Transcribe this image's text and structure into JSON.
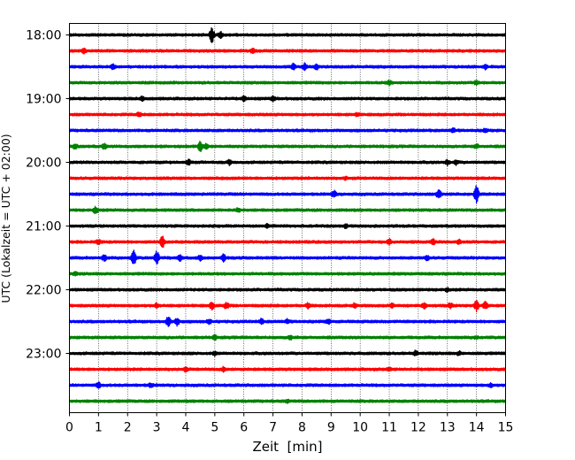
{
  "chart_data": {
    "type": "line",
    "xlabel": "Zeit  [min]",
    "ylabel": "UTC (Lokalzeit = UTC + 02:00)",
    "xlim": [
      0,
      15
    ],
    "x_ticks": [
      "0",
      "1",
      "2",
      "3",
      "4",
      "5",
      "6",
      "7",
      "8",
      "9",
      "10",
      "11",
      "12",
      "13",
      "14",
      "15"
    ],
    "y_ticks": [
      "18:00",
      "19:00",
      "20:00",
      "21:00",
      "22:00",
      "23:00"
    ],
    "grid": "vertical dotted",
    "trace_interval_minutes": 15,
    "start_time": "18:00",
    "colors": [
      "#000000",
      "#ff0000",
      "#0000ff",
      "#008000"
    ],
    "series": [
      {
        "start": "18:00",
        "color_index": 0,
        "events": [
          [
            4.9,
            1.0
          ],
          [
            5.2,
            0.4
          ]
        ]
      },
      {
        "start": "18:15",
        "color_index": 1,
        "events": [
          [
            0.5,
            0.3
          ],
          [
            6.3,
            0.3
          ]
        ]
      },
      {
        "start": "18:30",
        "color_index": 2,
        "events": [
          [
            1.5,
            0.35
          ],
          [
            7.7,
            0.4
          ],
          [
            8.1,
            0.45
          ],
          [
            8.5,
            0.4
          ],
          [
            14.3,
            0.3
          ]
        ]
      },
      {
        "start": "18:45",
        "color_index": 3,
        "events": [
          [
            11.0,
            0.3
          ],
          [
            14.0,
            0.3
          ]
        ]
      },
      {
        "start": "19:00",
        "color_index": 0,
        "events": [
          [
            2.5,
            0.3
          ],
          [
            6.0,
            0.3
          ],
          [
            7.0,
            0.3
          ]
        ]
      },
      {
        "start": "19:15",
        "color_index": 1,
        "events": [
          [
            2.4,
            0.3
          ],
          [
            9.9,
            0.25
          ]
        ]
      },
      {
        "start": "19:30",
        "color_index": 2,
        "events": [
          [
            13.2,
            0.3
          ],
          [
            14.3,
            0.25
          ]
        ]
      },
      {
        "start": "19:45",
        "color_index": 3,
        "events": [
          [
            0.2,
            0.4
          ],
          [
            1.2,
            0.35
          ],
          [
            4.5,
            0.7
          ],
          [
            4.7,
            0.4
          ],
          [
            14.0,
            0.3
          ]
        ]
      },
      {
        "start": "20:00",
        "color_index": 0,
        "events": [
          [
            4.1,
            0.35
          ],
          [
            5.5,
            0.3
          ],
          [
            13.0,
            0.35
          ],
          [
            13.3,
            0.3
          ]
        ]
      },
      {
        "start": "20:15",
        "color_index": 1,
        "events": [
          [
            9.5,
            0.2
          ]
        ]
      },
      {
        "start": "20:30",
        "color_index": 2,
        "events": [
          [
            9.1,
            0.45
          ],
          [
            12.7,
            0.6
          ],
          [
            14.0,
            1.1
          ]
        ]
      },
      {
        "start": "20:45",
        "color_index": 3,
        "events": [
          [
            0.9,
            0.5
          ],
          [
            5.8,
            0.3
          ]
        ]
      },
      {
        "start": "21:00",
        "color_index": 0,
        "events": [
          [
            6.8,
            0.25
          ],
          [
            9.5,
            0.25
          ]
        ]
      },
      {
        "start": "21:15",
        "color_index": 1,
        "events": [
          [
            1.0,
            0.3
          ],
          [
            3.2,
            0.8
          ],
          [
            11.0,
            0.35
          ],
          [
            12.5,
            0.4
          ],
          [
            13.4,
            0.3
          ]
        ]
      },
      {
        "start": "21:30",
        "color_index": 2,
        "events": [
          [
            1.2,
            0.4
          ],
          [
            2.2,
            1.1
          ],
          [
            3.0,
            1.0
          ],
          [
            3.8,
            0.4
          ],
          [
            4.5,
            0.35
          ],
          [
            5.3,
            0.5
          ],
          [
            12.3,
            0.35
          ]
        ]
      },
      {
        "start": "21:45",
        "color_index": 3,
        "events": [
          [
            0.2,
            0.2
          ]
        ]
      },
      {
        "start": "22:00",
        "color_index": 0,
        "events": [
          [
            13.0,
            0.25
          ]
        ]
      },
      {
        "start": "22:15",
        "color_index": 1,
        "events": [
          [
            3.0,
            0.35
          ],
          [
            4.9,
            0.5
          ],
          [
            5.4,
            0.45
          ],
          [
            8.2,
            0.35
          ],
          [
            9.8,
            0.3
          ],
          [
            11.1,
            0.3
          ],
          [
            12.2,
            0.4
          ],
          [
            13.1,
            0.4
          ],
          [
            14.0,
            0.7
          ],
          [
            14.3,
            0.5
          ]
        ]
      },
      {
        "start": "22:30",
        "color_index": 2,
        "events": [
          [
            3.4,
            0.7
          ],
          [
            3.7,
            0.5
          ],
          [
            4.8,
            0.35
          ],
          [
            6.6,
            0.35
          ],
          [
            7.5,
            0.3
          ],
          [
            8.9,
            0.35
          ]
        ]
      },
      {
        "start": "22:45",
        "color_index": 3,
        "events": [
          [
            5.0,
            0.3
          ],
          [
            7.6,
            0.3
          ],
          [
            14.0,
            0.2
          ]
        ]
      },
      {
        "start": "23:00",
        "color_index": 0,
        "events": [
          [
            5.0,
            0.25
          ],
          [
            11.9,
            0.35
          ],
          [
            13.4,
            0.25
          ]
        ]
      },
      {
        "start": "23:15",
        "color_index": 1,
        "events": [
          [
            4.0,
            0.3
          ],
          [
            5.3,
            0.3
          ],
          [
            11.0,
            0.25
          ]
        ]
      },
      {
        "start": "23:30",
        "color_index": 2,
        "events": [
          [
            1.0,
            0.4
          ],
          [
            2.8,
            0.3
          ],
          [
            14.5,
            0.25
          ]
        ]
      },
      {
        "start": "23:45",
        "color_index": 3,
        "events": [
          [
            7.5,
            0.2
          ]
        ]
      }
    ]
  }
}
